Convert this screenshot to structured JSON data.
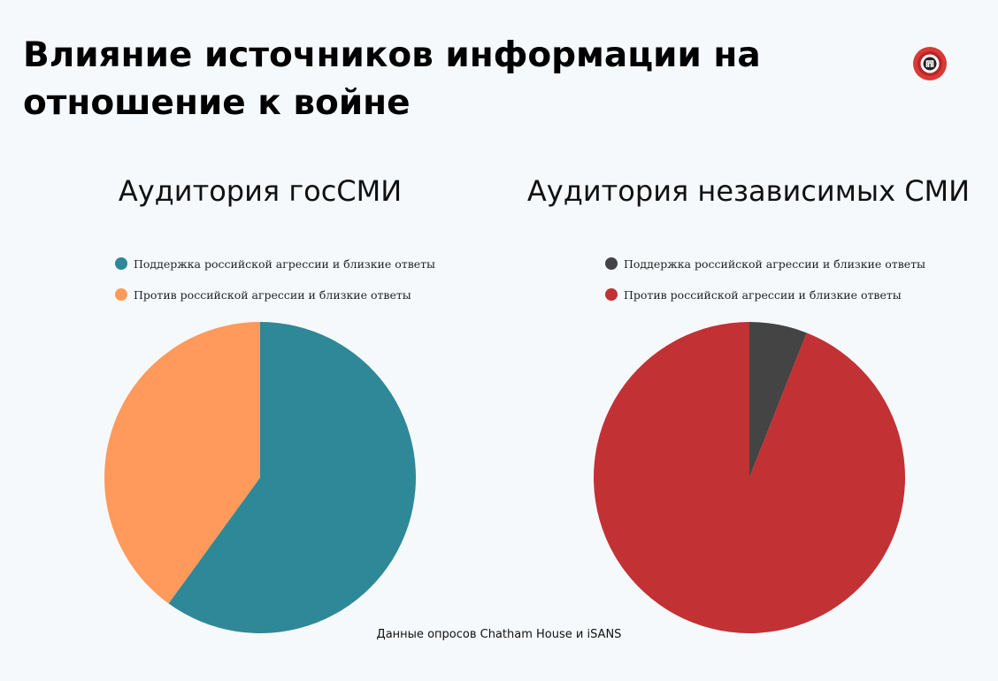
{
  "title": "Влияние источников информации на отношение к войне",
  "source": "Данные опросов Chatham House и iSANS",
  "logo": {
    "icon": "opposition-logo-icon",
    "color": "#d93a35"
  },
  "chart_data": [
    {
      "type": "pie",
      "title": "Аудитория госСМИ",
      "series": [
        {
          "name": "Поддержка российской агрессии и близкие ответы",
          "value": 60,
          "color": "#2e8897"
        },
        {
          "name": "Против российской агрессии и близкие ответы",
          "value": 40,
          "color": "#ff9a5c"
        }
      ]
    },
    {
      "type": "pie",
      "title": "Аудитория независимых СМИ",
      "series": [
        {
          "name": "Поддержка российской агрессии и близкие ответы",
          "value": 6,
          "color": "#444444"
        },
        {
          "name": "Против российской агрессии и близкие ответы",
          "value": 94,
          "color": "#c23134"
        }
      ]
    }
  ]
}
